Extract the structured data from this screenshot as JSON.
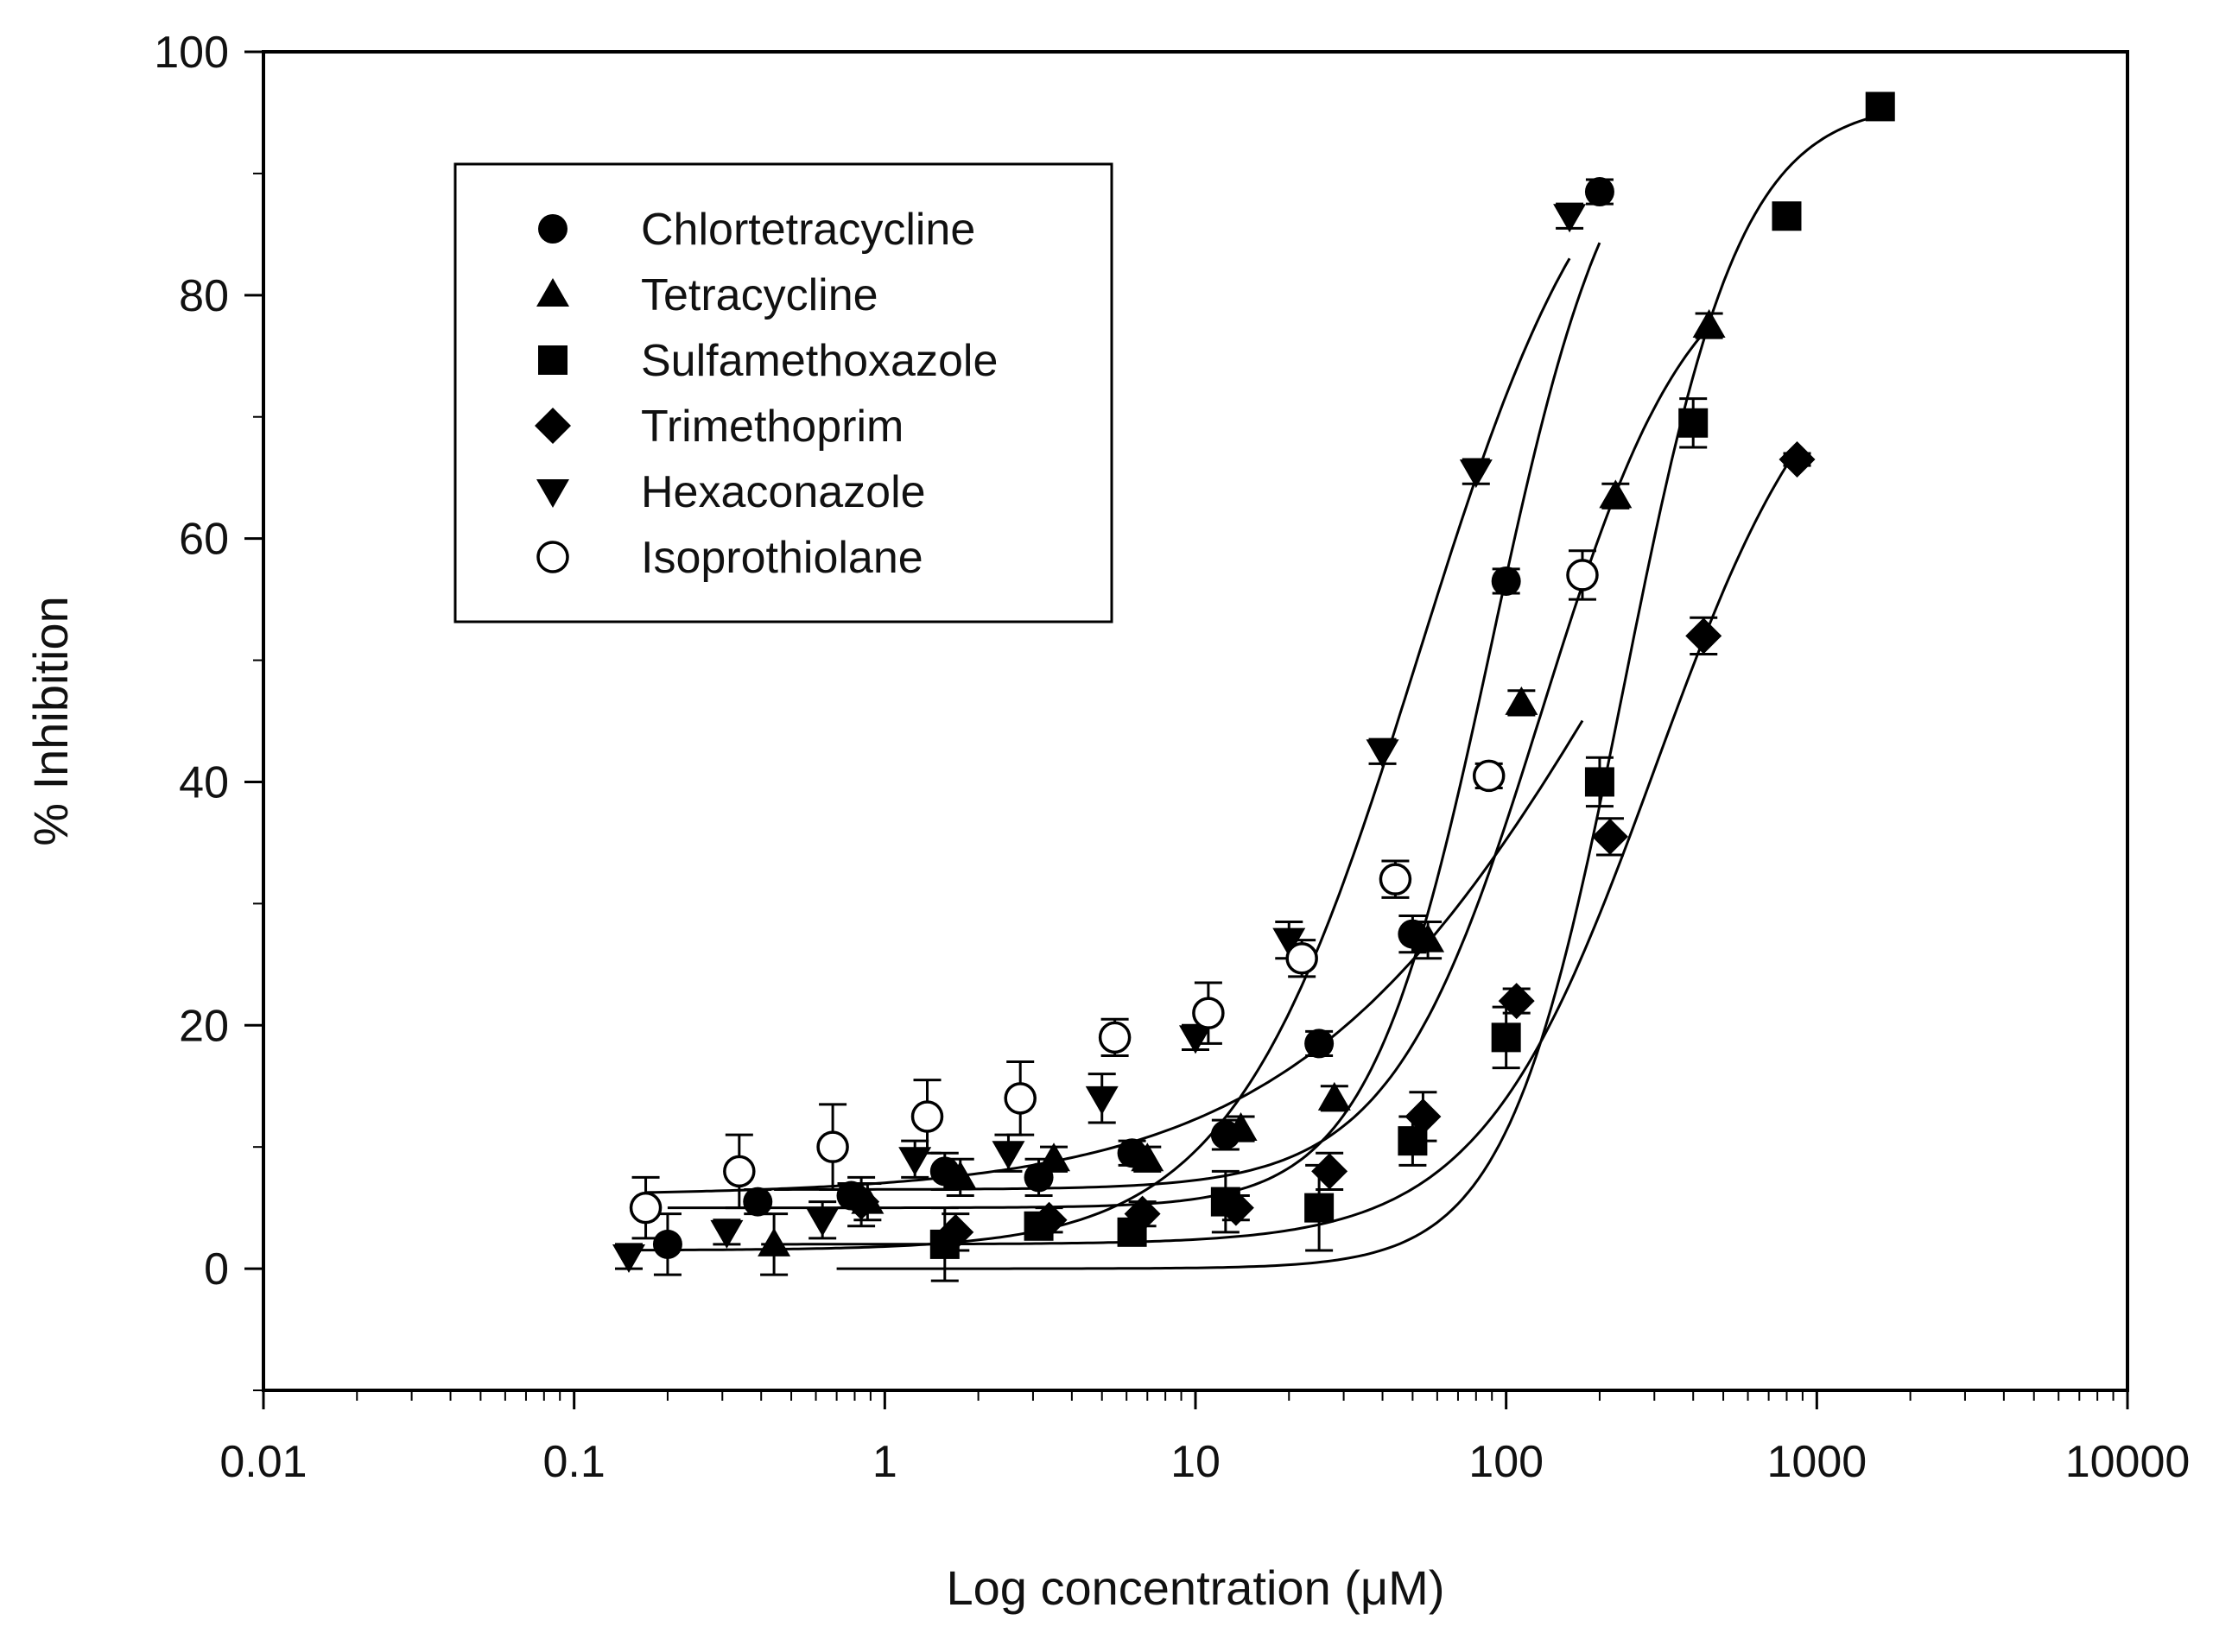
{
  "chart_data": {
    "type": "scatter",
    "title": "",
    "xlabel": "Log concentration (μM)",
    "ylabel": "% Inhibition",
    "xscale": "log",
    "xlim": [
      0.01,
      10000
    ],
    "ylim": [
      -10,
      100
    ],
    "xticks": [
      0.01,
      0.1,
      1,
      10,
      100,
      1000,
      10000
    ],
    "xtick_labels": [
      "0.01",
      "0.1",
      "1",
      "10",
      "100",
      "1000",
      "10000"
    ],
    "yticks": [
      0,
      20,
      40,
      60,
      80,
      100
    ],
    "ytick_labels": [
      "0",
      "20",
      "40",
      "60",
      "80",
      "100"
    ],
    "grid": false,
    "legend_position": "top-left",
    "fitted_curves": true,
    "series": [
      {
        "name": "Chlortetracycline",
        "marker": "filled-circle",
        "x": [
          0.2,
          0.39,
          0.78,
          1.56,
          3.13,
          6.25,
          12.5,
          25,
          50,
          100,
          200
        ],
        "y": [
          2,
          5.5,
          6,
          8,
          7.5,
          9.5,
          11,
          18.5,
          27.5,
          56.5,
          88.5
        ],
        "err": [
          2.5,
          1,
          1,
          1.5,
          1.5,
          1,
          1.2,
          1,
          1.5,
          1,
          1
        ],
        "fit": {
          "bottom": 5,
          "top": 98,
          "ec50": 90,
          "hill": 2.2,
          "xmin": 0.2,
          "xmax": 200
        }
      },
      {
        "name": "Tetracycline",
        "marker": "filled-triangle-up",
        "x": [
          0.44,
          0.88,
          1.75,
          3.5,
          7,
          14,
          28,
          56,
          112,
          225,
          450
        ],
        "y": [
          2,
          5.5,
          7.5,
          9,
          9,
          11.5,
          14,
          27,
          46.5,
          63.5,
          77.5
        ],
        "err": [
          2.5,
          1.5,
          1.5,
          1,
          1,
          1,
          1,
          1.5,
          1,
          1,
          1
        ],
        "fit": {
          "bottom": 6.5,
          "top": 85,
          "ec50": 130,
          "hill": 1.8,
          "xmin": 0.44,
          "xmax": 450
        }
      },
      {
        "name": "Sulfamethoxazole",
        "marker": "filled-square",
        "x": [
          1.56,
          3.13,
          6.25,
          12.5,
          25,
          50,
          100,
          200,
          400,
          800,
          1600
        ],
        "y": [
          2,
          3.5,
          3,
          5.5,
          5,
          10.5,
          19,
          40,
          69.5,
          86.5,
          95.5
        ],
        "err": [
          3,
          1,
          1,
          2.5,
          3.5,
          2,
          2.5,
          2,
          2,
          0.5,
          0.5
        ],
        "fit": {
          "bottom": 0,
          "top": 96,
          "ec50": 240,
          "hill": 2.3,
          "xmin": 0.7,
          "xmax": 1600
        }
      },
      {
        "name": "Trimethoprim",
        "marker": "filled-diamond",
        "x": [
          0.84,
          1.69,
          3.38,
          6.75,
          13.5,
          27,
          54,
          108,
          216,
          432,
          864
        ],
        "y": [
          5.5,
          3,
          4,
          4.5,
          5,
          8,
          12.5,
          22,
          35.5,
          52,
          66.5
        ],
        "err": [
          2,
          1.5,
          1,
          1,
          1,
          1.5,
          2,
          1,
          1.5,
          1.5,
          0.5
        ],
        "fit": {
          "bottom": 2,
          "top": 80,
          "ec50": 300,
          "hill": 1.55,
          "xmin": 0.4,
          "xmax": 864
        }
      },
      {
        "name": "Hexaconazole",
        "marker": "filled-triangle-down",
        "x": [
          0.15,
          0.31,
          0.63,
          1.25,
          2.5,
          5,
          10,
          20,
          40,
          80,
          160
        ],
        "y": [
          1,
          3,
          4,
          9,
          9.5,
          14,
          19,
          27,
          42.5,
          65.5,
          86.5
        ],
        "err": [
          1,
          1,
          1.5,
          1.5,
          1.5,
          2,
          1,
          1.5,
          1,
          1,
          1
        ],
        "fit": {
          "bottom": 1.5,
          "top": 99,
          "ec50": 52,
          "hill": 1.45,
          "xmin": 0.15,
          "xmax": 160
        }
      },
      {
        "name": "Isoprothiolane",
        "marker": "open-circle",
        "x": [
          0.17,
          0.34,
          0.68,
          1.37,
          2.73,
          5.5,
          11,
          22,
          44,
          88,
          176
        ],
        "y": [
          5,
          8,
          10,
          12.5,
          14,
          19,
          21,
          25.5,
          32,
          40.5,
          57
        ],
        "err": [
          2.5,
          3,
          3.5,
          3,
          3,
          1.5,
          2.5,
          1.5,
          1.5,
          1,
          2
        ],
        "fit": {
          "bottom": 6,
          "top": 100,
          "ec50": 270,
          "hill": 0.8,
          "xmin": 0.17,
          "xmax": 176
        }
      }
    ]
  }
}
